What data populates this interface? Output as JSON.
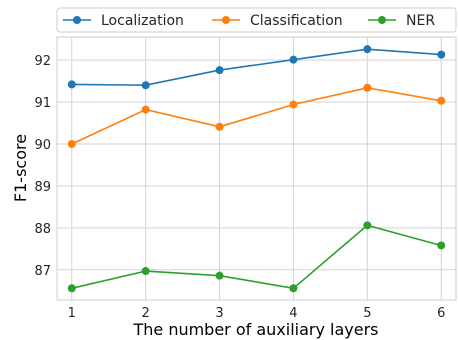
{
  "chart_data": {
    "type": "line",
    "title": "",
    "xlabel": "The number of auxiliary layers",
    "ylabel": "F1-score",
    "x": [
      1,
      2,
      3,
      4,
      5,
      6
    ],
    "x_tick_labels": [
      "1",
      "2",
      "3",
      "4",
      "5",
      "6"
    ],
    "xlim": [
      0.8,
      6.2
    ],
    "ylim": [
      86.28,
      92.55
    ],
    "y_ticks": [
      87,
      88,
      89,
      90,
      91,
      92
    ],
    "y_tick_labels": [
      "87",
      "88",
      "89",
      "90",
      "91",
      "92"
    ],
    "grid": true,
    "legend_position": "top",
    "series": [
      {
        "name": "Localization",
        "color": "#1f77b4",
        "values": [
          91.42,
          91.4,
          91.76,
          92.01,
          92.26,
          92.13
        ]
      },
      {
        "name": "Classification",
        "color": "#ff7f0e",
        "values": [
          90.0,
          90.82,
          90.41,
          90.94,
          91.34,
          91.03
        ]
      },
      {
        "name": "NER",
        "color": "#2ca02c",
        "values": [
          86.56,
          86.97,
          86.86,
          86.56,
          88.06,
          87.58
        ]
      }
    ]
  }
}
